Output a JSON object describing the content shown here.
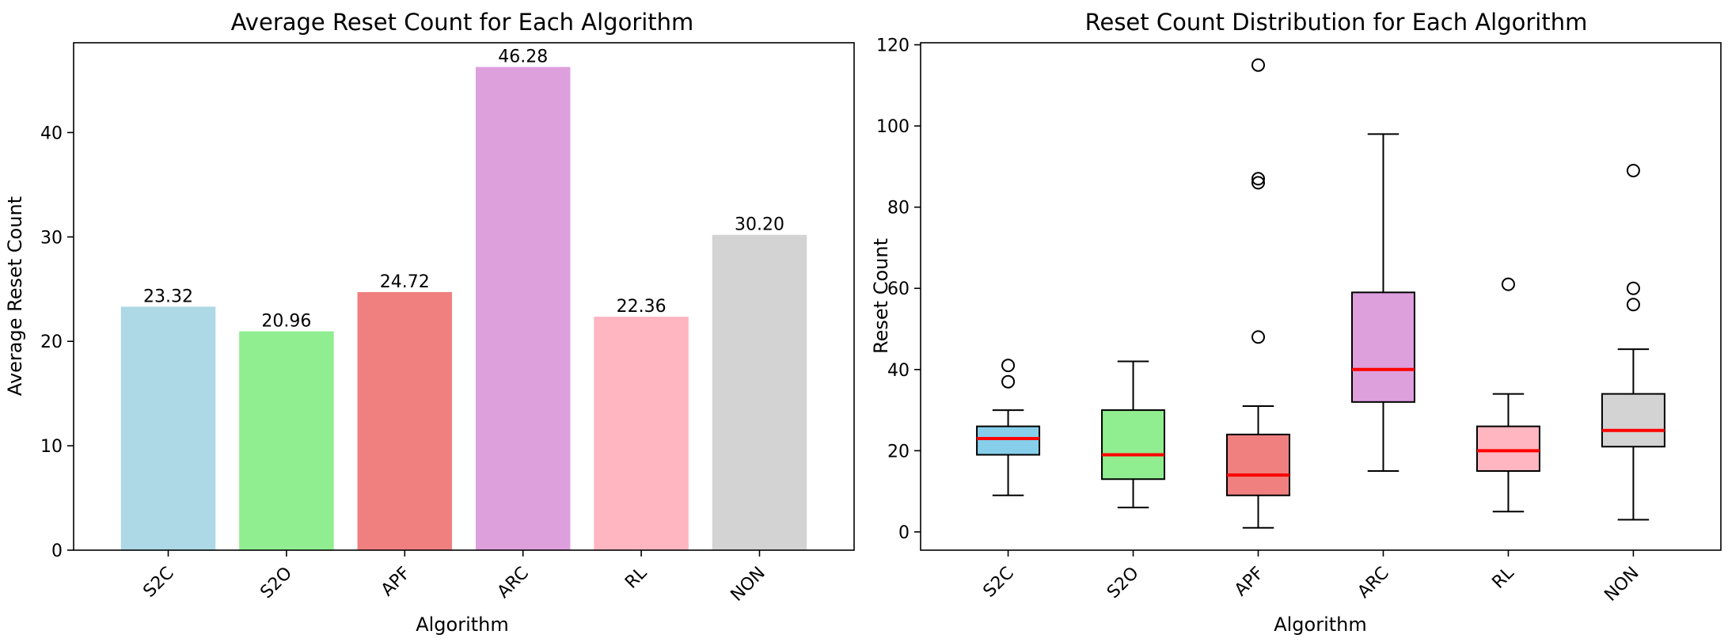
{
  "chart_data": [
    {
      "type": "bar",
      "title": "Average Reset Count for Each Algorithm",
      "xlabel": "Algorithm",
      "ylabel": "Average Reset Count",
      "categories": [
        "S2C",
        "S2O",
        "APF",
        "ARC",
        "RL",
        "NON"
      ],
      "values": [
        23.32,
        20.96,
        24.72,
        46.28,
        22.36,
        30.2
      ],
      "value_labels": [
        "23.32",
        "20.96",
        "24.72",
        "46.28",
        "22.36",
        "30.20"
      ],
      "colors": [
        "#add8e6",
        "#90ee90",
        "#f08080",
        "#dda0dd",
        "#ffb6c1",
        "#d3d3d3"
      ],
      "ylim": [
        0,
        48.6
      ],
      "yticks": [
        0,
        10,
        20,
        30,
        40
      ],
      "grid": false
    },
    {
      "type": "box",
      "title": "Reset Count Distribution for Each Algorithm",
      "xlabel": "Algorithm",
      "ylabel": "Reset Count",
      "categories": [
        "S2C",
        "S2O",
        "APF",
        "ARC",
        "RL",
        "NON"
      ],
      "colors": [
        "#87ceeb",
        "#90ee90",
        "#f08080",
        "#dda0dd",
        "#ffb6c1",
        "#d3d3d3"
      ],
      "median_color": "#ff0000",
      "boxes": [
        {
          "whislo": 9,
          "q1": 19,
          "med": 23,
          "q3": 26,
          "whishi": 30,
          "fliers": [
            37,
            41
          ]
        },
        {
          "whislo": 6,
          "q1": 13,
          "med": 19,
          "q3": 30,
          "whishi": 42,
          "fliers": []
        },
        {
          "whislo": 1,
          "q1": 9,
          "med": 14,
          "q3": 24,
          "whishi": 31,
          "fliers": [
            48,
            86,
            87,
            115
          ]
        },
        {
          "whislo": 15,
          "q1": 32,
          "med": 40,
          "q3": 59,
          "whishi": 98,
          "fliers": []
        },
        {
          "whislo": 5,
          "q1": 15,
          "med": 20,
          "q3": 26,
          "whishi": 34,
          "fliers": [
            61
          ]
        },
        {
          "whislo": 3,
          "q1": 21,
          "med": 25,
          "q3": 34,
          "whishi": 45,
          "fliers": [
            56,
            60,
            89
          ]
        }
      ],
      "ylim": [
        -4.5,
        120.5
      ],
      "yticks": [
        0,
        20,
        40,
        60,
        80,
        100,
        120
      ],
      "grid": false
    }
  ]
}
